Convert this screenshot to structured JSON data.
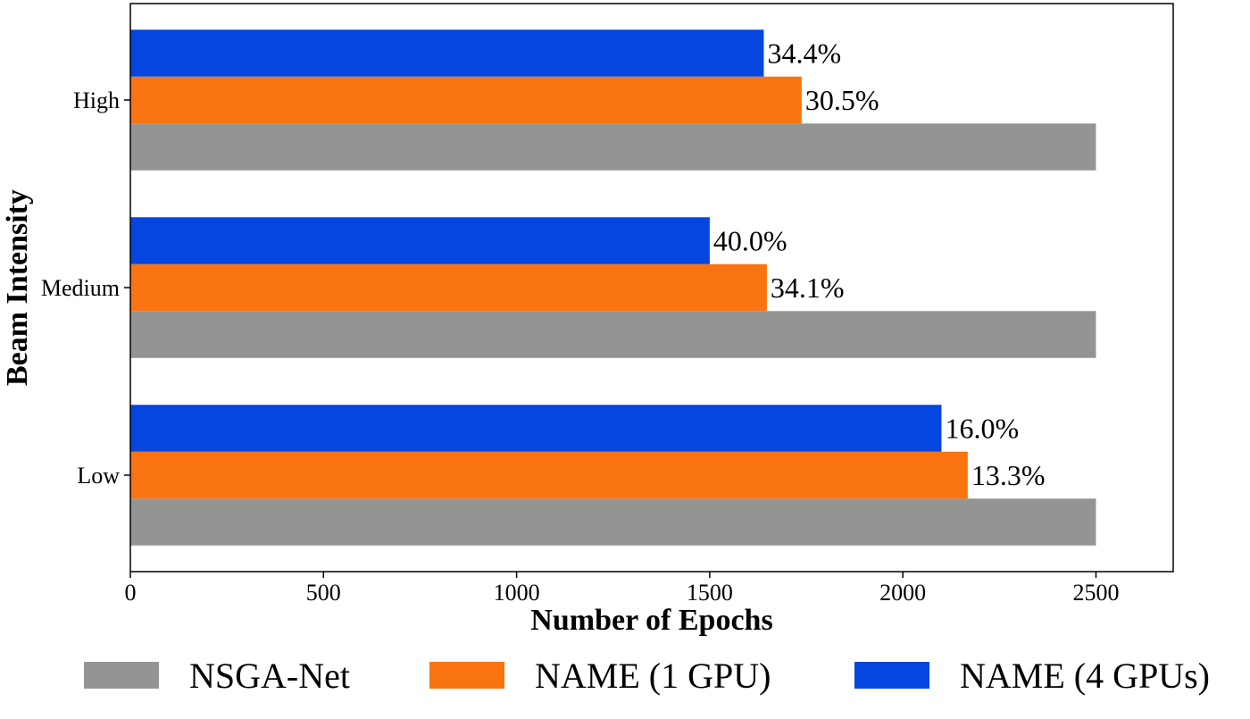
{
  "chart_data": {
    "type": "bar",
    "orientation": "horizontal",
    "title": "",
    "xlabel": "Number of Epochs",
    "ylabel": "Beam Intensity",
    "categories": [
      "Low",
      "Medium",
      "High"
    ],
    "xlim": [
      0,
      2700
    ],
    "xticks": [
      0,
      500,
      1000,
      1500,
      2000,
      2500
    ],
    "grid": false,
    "legend_position": "bottom",
    "series": [
      {
        "name": "NSGA-Net",
        "color": "#949593",
        "values": [
          2500,
          2500,
          2500
        ],
        "labels": [
          "",
          "",
          ""
        ]
      },
      {
        "name": "NAME (1 GPU)",
        "color": "#f97310",
        "values": [
          2168,
          1648,
          1738
        ],
        "labels": [
          "13.3%",
          "34.1%",
          "30.5%"
        ]
      },
      {
        "name": "NAME (4 GPUs)",
        "color": "#0545e0",
        "values": [
          2100,
          1500,
          1640
        ],
        "labels": [
          "16.0%",
          "40.0%",
          "34.4%"
        ]
      }
    ]
  }
}
